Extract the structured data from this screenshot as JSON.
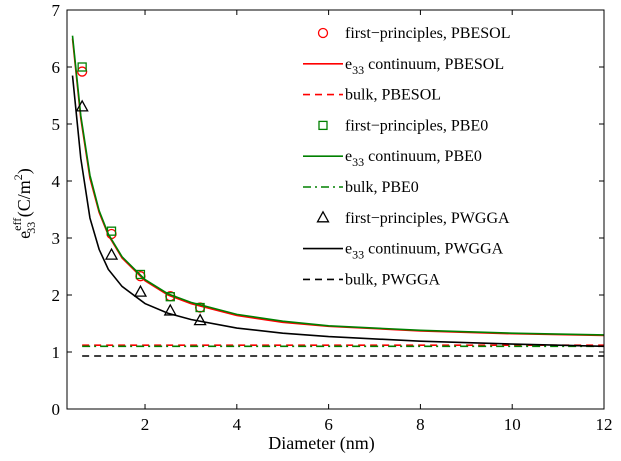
{
  "chart_data": {
    "type": "line",
    "xlabel": "Diameter (nm)",
    "ylabel": {
      "base": "e",
      "sub": "33",
      "sup": "eff",
      "unit_open": " (C/m",
      "unit_sup": "2",
      "unit_close": ")"
    },
    "xlim": [
      0.3,
      12
    ],
    "ylim": [
      0,
      7
    ],
    "xticks": [
      2,
      4,
      6,
      8,
      10,
      12
    ],
    "yticks": [
      0,
      1,
      2,
      3,
      4,
      5,
      6,
      7
    ],
    "grid": false,
    "legend_position": "top-right",
    "colors": {
      "pbesol": "#ff0000",
      "pbe0": "#008000",
      "pwgga": "#000000"
    },
    "series": [
      {
        "name": "first−principles, PBESOL",
        "kind": "scatter",
        "marker": "circle",
        "color": "#ff0000",
        "x": [
          0.63,
          1.27,
          1.9,
          2.55,
          3.2
        ],
        "y": [
          5.92,
          3.07,
          2.33,
          1.98,
          1.78
        ]
      },
      {
        "name": "e",
        "name_sub": "33",
        "name_rest": " continuum, PBESOL",
        "kind": "line",
        "dash": "solid",
        "color": "#ff0000",
        "x": [
          0.42,
          0.6,
          0.8,
          1.0,
          1.2,
          1.5,
          2.0,
          2.5,
          3.0,
          4.0,
          5.0,
          6.0,
          8.0,
          10.0,
          12.0
        ],
        "y": [
          6.5,
          5.1,
          4.05,
          3.45,
          3.05,
          2.65,
          2.25,
          2.0,
          1.85,
          1.64,
          1.52,
          1.45,
          1.37,
          1.32,
          1.29
        ]
      },
      {
        "name": "bulk, PBESOL",
        "kind": "line",
        "dash": "dashed",
        "color": "#ff0000",
        "x": [
          0.63,
          12
        ],
        "y": [
          1.12,
          1.12
        ]
      },
      {
        "name": "first−principles, PBE0",
        "kind": "scatter",
        "marker": "square",
        "color": "#008000",
        "x": [
          0.63,
          1.27,
          1.9,
          2.55,
          3.2
        ],
        "y": [
          6.0,
          3.12,
          2.36,
          1.97,
          1.78
        ]
      },
      {
        "name": "e",
        "name_sub": "33",
        "name_rest": " continuum, PBE0",
        "kind": "line",
        "dash": "solid",
        "color": "#008000",
        "x": [
          0.42,
          0.6,
          0.8,
          1.0,
          1.2,
          1.5,
          2.0,
          2.5,
          3.0,
          4.0,
          5.0,
          6.0,
          8.0,
          10.0,
          12.0
        ],
        "y": [
          6.55,
          5.15,
          4.1,
          3.48,
          3.07,
          2.67,
          2.27,
          2.02,
          1.87,
          1.66,
          1.54,
          1.46,
          1.38,
          1.33,
          1.3
        ]
      },
      {
        "name": "bulk, PBE0",
        "kind": "line",
        "dash": "dashdot",
        "color": "#008000",
        "x": [
          0.63,
          12
        ],
        "y": [
          1.1,
          1.1
        ]
      },
      {
        "name": "first−principles, PWGGA",
        "kind": "scatter",
        "marker": "triangle",
        "color": "#000000",
        "x": [
          0.63,
          1.27,
          1.9,
          2.55,
          3.2
        ],
        "y": [
          5.3,
          2.7,
          2.05,
          1.72,
          1.55
        ]
      },
      {
        "name": "e",
        "name_sub": "33",
        "name_rest": " continuum, PWGGA",
        "kind": "line",
        "dash": "solid",
        "color": "#000000",
        "x": [
          0.42,
          0.6,
          0.8,
          1.0,
          1.2,
          1.5,
          2.0,
          2.5,
          3.0,
          4.0,
          5.0,
          6.0,
          8.0,
          10.0,
          12.0
        ],
        "y": [
          5.85,
          4.4,
          3.35,
          2.8,
          2.45,
          2.15,
          1.85,
          1.68,
          1.57,
          1.42,
          1.33,
          1.27,
          1.19,
          1.14,
          1.1
        ]
      },
      {
        "name": "bulk, PWGGA",
        "kind": "line",
        "dash": "dashed",
        "color": "#000000",
        "x": [
          0.63,
          12
        ],
        "y": [
          0.93,
          0.93
        ]
      }
    ]
  }
}
